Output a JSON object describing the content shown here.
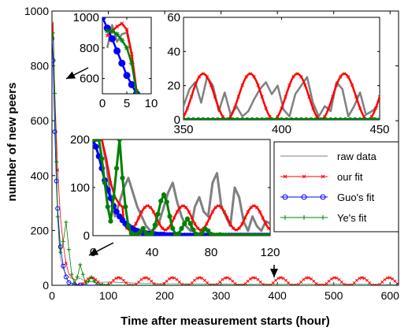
{
  "chart_data": [
    {
      "id": "main",
      "type": "line",
      "xlabel": "Time after measurement starts (hour)",
      "ylabel": "number of new peers",
      "xlim": [
        0,
        615
      ],
      "ylim": [
        0,
        1000
      ],
      "xticks": [
        0,
        100,
        200,
        300,
        400,
        500,
        600
      ],
      "yticks": [
        0,
        200,
        400,
        600,
        800,
        1000
      ],
      "legend": {
        "placement": "right",
        "entries": [
          {
            "name": "raw data",
            "color": "#808080",
            "marker": "none"
          },
          {
            "name": "our fit",
            "color": "#ff0000",
            "marker": "x"
          },
          {
            "name": "Guo's fit",
            "color": "#0000ff",
            "marker": "o"
          },
          {
            "name": "Ye's fit",
            "color": "#008000",
            "marker": "+"
          }
        ]
      },
      "annotations": [
        {
          "text": "0",
          "x": 8,
          "y": 45
        },
        {
          "text": "40",
          "x": 148,
          "y": 45
        },
        {
          "text": "80",
          "x": 296,
          "y": 45
        },
        {
          "text": "120",
          "x": 398,
          "y": 45
        }
      ],
      "series": [
        {
          "name": "raw data",
          "color": "#808080",
          "x": [
            0,
            1,
            2,
            3,
            4,
            5,
            6,
            8,
            10,
            12,
            15,
            20,
            25,
            30,
            40,
            50,
            60,
            80,
            100,
            150,
            200,
            300,
            400,
            500,
            615
          ],
          "y": [
            880,
            950,
            900,
            820,
            700,
            600,
            500,
            350,
            250,
            170,
            100,
            60,
            40,
            30,
            20,
            25,
            15,
            10,
            12,
            8,
            6,
            5,
            4,
            5,
            3
          ]
        },
        {
          "name": "our fit",
          "color": "#ff0000",
          "periodic": {
            "offset": 12,
            "amplitude": 16,
            "period": 48,
            "phase": 10
          },
          "x": [
            0,
            2,
            5,
            10,
            15,
            20,
            25,
            30,
            40
          ],
          "y": [
            900,
            960,
            700,
            420,
            250,
            150,
            80,
            40,
            20
          ]
        },
        {
          "name": "Guo's fit",
          "color": "#0000ff",
          "x": [
            0,
            2,
            5,
            8,
            10,
            15,
            20,
            25,
            30,
            40,
            50,
            615
          ],
          "y": [
            900,
            820,
            560,
            380,
            280,
            140,
            70,
            30,
            10,
            3,
            1,
            0
          ]
        },
        {
          "name": "Ye's fit",
          "color": "#008000",
          "x": [
            0,
            2,
            5,
            8,
            10,
            15,
            20,
            25,
            30,
            35,
            40,
            45,
            50,
            55,
            60,
            65,
            70,
            75,
            80,
            90,
            100,
            615
          ],
          "y": [
            900,
            920,
            700,
            450,
            250,
            120,
            160,
            230,
            130,
            40,
            5,
            30,
            75,
            40,
            5,
            15,
            30,
            15,
            5,
            2,
            1,
            0
          ]
        }
      ]
    },
    {
      "id": "inset-topleft",
      "type": "line",
      "xlim": [
        0,
        10
      ],
      "ylim": [
        500,
        1000
      ],
      "xticks": [
        0,
        5,
        10
      ],
      "yticks": [
        600,
        800,
        1000
      ],
      "series": [
        {
          "name": "raw data",
          "color": "#808080",
          "x": [
            1,
            2,
            3,
            4,
            5,
            6,
            7
          ],
          "y": [
            800,
            950,
            840,
            890,
            900,
            760,
            500
          ]
        },
        {
          "name": "our fit",
          "color": "#ff0000",
          "x": [
            1,
            2,
            3,
            4,
            5,
            6,
            7
          ],
          "y": [
            880,
            910,
            940,
            960,
            920,
            760,
            520
          ]
        },
        {
          "name": "Guo's fit",
          "color": "#0000ff",
          "x": [
            0,
            1,
            2,
            3,
            4,
            5,
            6,
            7
          ],
          "y": [
            1000,
            930,
            860,
            780,
            700,
            620,
            560,
            500
          ]
        },
        {
          "name": "Ye's fit",
          "color": "#008000",
          "x": [
            1,
            2,
            3,
            4,
            5,
            6,
            7
          ],
          "y": [
            910,
            910,
            890,
            850,
            800,
            700,
            510
          ]
        }
      ]
    },
    {
      "id": "inset-topright",
      "type": "line",
      "xlim": [
        350,
        450
      ],
      "ylim": [
        0,
        60
      ],
      "xticks": [
        350,
        400,
        450
      ],
      "yticks": [
        0,
        20,
        40,
        60
      ],
      "series": [
        {
          "name": "raw data",
          "color": "#808080",
          "x": [
            350,
            353,
            356,
            359,
            362,
            365,
            368,
            371,
            374,
            377,
            380,
            383,
            386,
            389,
            392,
            395,
            398,
            401,
            404,
            407,
            410,
            413,
            416,
            419,
            422,
            425,
            428,
            431,
            434,
            437,
            440,
            443,
            446,
            449
          ],
          "y": [
            8,
            18,
            22,
            10,
            25,
            20,
            5,
            16,
            3,
            8,
            2,
            5,
            12,
            18,
            22,
            15,
            20,
            6,
            2,
            15,
            20,
            25,
            10,
            2,
            8,
            5,
            22,
            18,
            2,
            8,
            16,
            3,
            5,
            8
          ]
        },
        {
          "name": "our fit",
          "color": "#ff0000",
          "periodic": {
            "offset": 13.5,
            "amplitude": 13.5,
            "period": 24,
            "phase": 354
          }
        },
        {
          "name": "Guo's fit",
          "color": "#0000ff",
          "x": [
            350,
            450
          ],
          "y": [
            0,
            0
          ]
        },
        {
          "name": "Ye's fit",
          "color": "#008000",
          "x": [
            350,
            450
          ],
          "y": [
            0,
            0
          ]
        }
      ]
    },
    {
      "id": "inset-middle",
      "type": "line",
      "xlim": [
        0,
        120
      ],
      "ylim": [
        0,
        200
      ],
      "yticks": [
        0,
        100,
        200
      ],
      "series": [
        {
          "name": "raw data",
          "color": "#808080",
          "x": [
            0,
            3,
            6,
            9,
            12,
            15,
            18,
            21,
            24,
            27,
            30,
            33,
            36,
            39,
            42,
            45,
            48,
            51,
            54,
            57,
            60,
            63,
            66,
            69,
            72,
            75,
            78,
            81,
            84,
            87,
            90,
            93,
            96,
            99,
            102,
            105,
            108,
            111,
            114,
            117,
            120
          ],
          "y": [
            200,
            200,
            200,
            150,
            80,
            40,
            70,
            100,
            120,
            90,
            60,
            40,
            20,
            10,
            15,
            30,
            60,
            90,
            110,
            70,
            40,
            20,
            10,
            60,
            80,
            50,
            40,
            110,
            130,
            60,
            40,
            20,
            100,
            80,
            30,
            10,
            40,
            20,
            10,
            30,
            25
          ]
        },
        {
          "name": "our fit",
          "color": "#ff0000",
          "periodic": {
            "offset": 37,
            "amplitude": 25,
            "period": 24,
            "phase": 7
          },
          "x": [
            0,
            3,
            6,
            9,
            12,
            15,
            18,
            20
          ],
          "y": [
            200,
            200,
            200,
            160,
            110,
            80,
            65,
            60
          ]
        },
        {
          "name": "Guo's fit",
          "color": "#0000ff",
          "x": [
            0,
            2,
            4,
            6,
            8,
            10,
            12,
            14,
            16,
            18,
            20,
            22,
            24,
            26,
            28,
            30,
            32,
            34,
            36,
            38,
            40,
            42,
            44,
            46,
            48,
            50,
            52,
            54,
            56,
            58,
            60,
            62,
            64,
            66,
            68,
            70,
            72,
            74,
            76,
            78,
            80,
            82,
            84,
            86,
            88,
            90,
            92,
            94,
            96,
            98,
            100,
            102,
            104,
            106,
            108,
            110,
            112,
            114,
            116,
            118,
            120
          ],
          "y": [
            200,
            185,
            165,
            140,
            115,
            95,
            78,
            62,
            50,
            40,
            32,
            25,
            20,
            16,
            12,
            10,
            8,
            6,
            5,
            4,
            3,
            3,
            2,
            2,
            2,
            1,
            1,
            1,
            1,
            1,
            0,
            0,
            0,
            0,
            0,
            0,
            0,
            0,
            0,
            0,
            0,
            0,
            0,
            0,
            0,
            0,
            0,
            0,
            0,
            0,
            0,
            0,
            0,
            0,
            0,
            0,
            0,
            0,
            0,
            0,
            0
          ]
        },
        {
          "name": "Ye's fit",
          "color": "#008000",
          "x": [
            0,
            2,
            4,
            6,
            8,
            10,
            12,
            14,
            16,
            18,
            20,
            22,
            24,
            26,
            28,
            30,
            32,
            34,
            36,
            38,
            40,
            42,
            44,
            46,
            48,
            50,
            52,
            54,
            56,
            58,
            60,
            62,
            64,
            66,
            68,
            70,
            72,
            74,
            76,
            78,
            80,
            82,
            84,
            86,
            88,
            90,
            92,
            94,
            96,
            98,
            100,
            102,
            104,
            106,
            108,
            110,
            112,
            114,
            116,
            118,
            120
          ],
          "y": [
            200,
            200,
            200,
            160,
            110,
            60,
            30,
            80,
            140,
            200,
            120,
            60,
            20,
            5,
            2,
            3,
            8,
            15,
            5,
            1,
            5,
            22,
            45,
            72,
            85,
            70,
            40,
            15,
            3,
            4,
            15,
            25,
            35,
            25,
            12,
            3,
            2,
            6,
            14,
            10,
            3,
            1,
            1,
            2,
            1,
            1,
            0,
            0,
            0,
            0,
            0,
            0,
            0,
            0,
            0,
            0,
            0,
            0,
            0,
            0,
            0
          ]
        }
      ]
    }
  ]
}
